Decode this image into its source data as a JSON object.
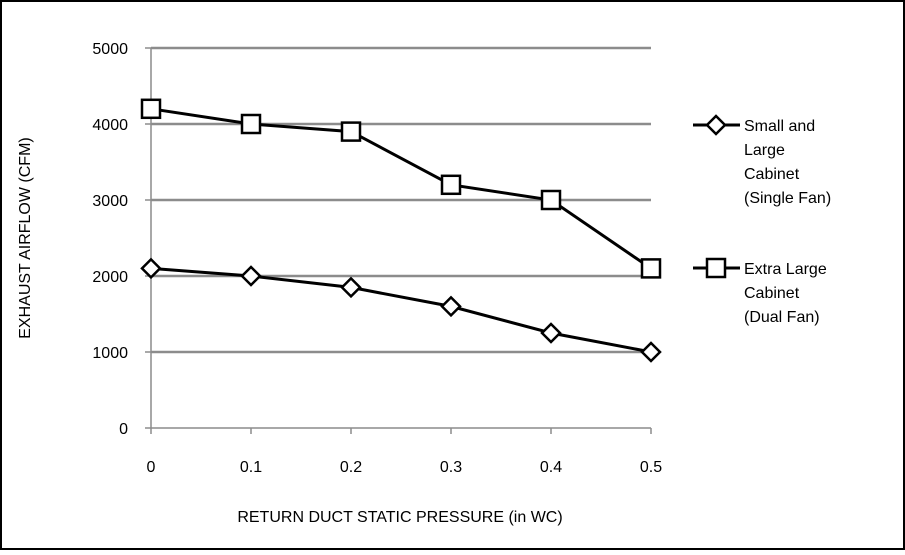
{
  "chart_data": {
    "type": "line",
    "title": "",
    "xlabel": "RETURN DUCT STATIC PRESSURE  (in WC)",
    "ylabel": "EXHAUST AIRFLOW (CFM)",
    "x": [
      0,
      0.1,
      0.2,
      0.3,
      0.4,
      0.5
    ],
    "x_tick_labels": [
      "0",
      "0.1",
      "0.2",
      "0.3",
      "0.4",
      "0.5"
    ],
    "xlim": [
      0,
      0.5
    ],
    "ylim": [
      0,
      5000
    ],
    "y_ticks": [
      0,
      1000,
      2000,
      3000,
      4000,
      5000
    ],
    "y_tick_labels": [
      "0",
      "1000",
      "2000",
      "3000",
      "4000",
      "5000"
    ],
    "grid": "horizontal",
    "legend_position": "right",
    "series": [
      {
        "name": "Small and Large Cabinet (Single Fan)",
        "legend_lines": [
          "Small and",
          "Large",
          "Cabinet",
          "(Single Fan)"
        ],
        "marker": "diamond",
        "values": [
          2100,
          2000,
          1850,
          1600,
          1250,
          1000
        ]
      },
      {
        "name": "Extra Large Cabinet (Dual Fan)",
        "legend_lines": [
          "Extra Large",
          "Cabinet",
          "(Dual Fan)"
        ],
        "marker": "square",
        "values": [
          4200,
          4000,
          3900,
          3200,
          3000,
          2100
        ]
      }
    ]
  }
}
